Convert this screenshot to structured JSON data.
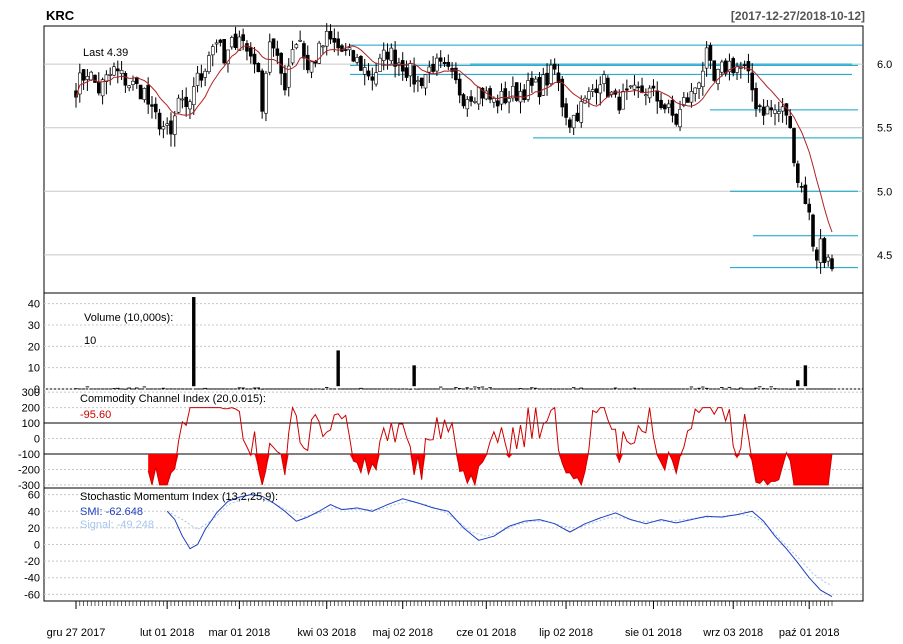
{
  "header": {
    "symbol": "KRC",
    "date_range": "[2017-12-27/2018-10-12]"
  },
  "colors": {
    "up": "#ffffff",
    "down": "#000000",
    "candle_border": "#000000",
    "sma": "#b22222",
    "bbands": "#0aa0c8",
    "cci_fill": "#ff0000",
    "cci_line": "#cc0000",
    "smi": "#1f3fbf",
    "signal": "#a8c6ec",
    "grid": "#c8c8c8"
  },
  "chart_data": [
    {
      "type": "candlestick",
      "name": "price",
      "last_label": "Last 4.39",
      "ylim": [
        4.2,
        6.3
      ],
      "y_ticks": [
        "4.5",
        "5.0",
        "5.5",
        "6.0"
      ],
      "y_tick_values": [
        4.5,
        5.0,
        5.5,
        6.0
      ],
      "x_tick_labels": [
        "gru 27 2017",
        "lut 01 2018",
        "mar 01 2018",
        "kwi 03 2018",
        "maj 02 2018",
        "cze 01 2018",
        "lip 02 2018",
        "sie 01 2018",
        "wrz 03 2018",
        "paź 01 2018"
      ],
      "x_tick_index": [
        0,
        24,
        43,
        66,
        86,
        108,
        129,
        152,
        173,
        193
      ],
      "anchors": [
        [
          0,
          5.82
        ],
        [
          3,
          5.95
        ],
        [
          6,
          5.8
        ],
        [
          10,
          5.95
        ],
        [
          14,
          5.85
        ],
        [
          18,
          5.78
        ],
        [
          20,
          5.6
        ],
        [
          22,
          5.55
        ],
        [
          25,
          5.42
        ],
        [
          27,
          5.72
        ],
        [
          29,
          5.6
        ],
        [
          31,
          5.85
        ],
        [
          33,
          5.9
        ],
        [
          35,
          6.1
        ],
        [
          37,
          6.2
        ],
        [
          39,
          6.0
        ],
        [
          41,
          6.15
        ],
        [
          43,
          6.25
        ],
        [
          45,
          6.1
        ],
        [
          47,
          6.05
        ],
        [
          49,
          5.7
        ],
        [
          51,
          6.2
        ],
        [
          53,
          6.0
        ],
        [
          55,
          5.85
        ],
        [
          57,
          6.15
        ],
        [
          59,
          6.2
        ],
        [
          61,
          5.95
        ],
        [
          63,
          6.05
        ],
        [
          65,
          6.15
        ],
        [
          66,
          6.2
        ],
        [
          70,
          6.1
        ],
        [
          74,
          6.02
        ],
        [
          78,
          5.9
        ],
        [
          82,
          6.1
        ],
        [
          86,
          6.0
        ],
        [
          90,
          5.85
        ],
        [
          94,
          6.0
        ],
        [
          98,
          5.92
        ],
        [
          102,
          5.75
        ],
        [
          106,
          5.8
        ],
        [
          110,
          5.7
        ],
        [
          114,
          5.75
        ],
        [
          118,
          5.8
        ],
        [
          122,
          5.82
        ],
        [
          126,
          5.95
        ],
        [
          128,
          5.7
        ],
        [
          130,
          5.55
        ],
        [
          134,
          5.7
        ],
        [
          138,
          5.9
        ],
        [
          142,
          5.7
        ],
        [
          146,
          5.75
        ],
        [
          150,
          5.8
        ],
        [
          154,
          5.7
        ],
        [
          158,
          5.55
        ],
        [
          160,
          5.7
        ],
        [
          162,
          5.75
        ],
        [
          164,
          5.9
        ],
        [
          166,
          6.05
        ],
        [
          168,
          5.85
        ],
        [
          170,
          5.95
        ],
        [
          172,
          6.0
        ],
        [
          174,
          5.98
        ],
        [
          176,
          5.95
        ],
        [
          178,
          5.8
        ],
        [
          179,
          5.7
        ],
        [
          181,
          5.65
        ],
        [
          184,
          5.63
        ],
        [
          187,
          5.62
        ],
        [
          189,
          5.3
        ],
        [
          190,
          5.1
        ],
        [
          192,
          4.95
        ],
        [
          193,
          4.8
        ],
        [
          194,
          4.6
        ],
        [
          195,
          4.5
        ],
        [
          196,
          4.6
        ],
        [
          197,
          4.45
        ],
        [
          198,
          4.55
        ],
        [
          199,
          4.39
        ]
      ],
      "volume_spikes": [
        [
          31,
          43
        ],
        [
          69,
          18
        ],
        [
          89,
          11
        ],
        [
          190,
          4
        ],
        [
          192,
          11
        ]
      ]
    },
    {
      "type": "bar",
      "name": "volume",
      "label": "Volume (10,000s):",
      "value_label": "10",
      "ylim": [
        0,
        45
      ],
      "y_ticks": [
        "0",
        "10",
        "20",
        "30",
        "40"
      ],
      "y_tick_values": [
        0,
        10,
        20,
        30,
        40
      ]
    },
    {
      "type": "area",
      "name": "cci",
      "label": "Commodity Channel Index (20,0.015):",
      "value_label": "-95.60",
      "ylim": [
        -320,
        320
      ],
      "y_ticks": [
        "-300",
        "-200",
        "-100",
        "0",
        "100",
        "200",
        "300"
      ],
      "y_tick_values": [
        -300,
        -200,
        -100,
        0,
        100,
        200,
        300
      ],
      "ref_lines": [
        100,
        -100
      ]
    },
    {
      "type": "line",
      "name": "smi",
      "label": "Stochastic Momentum Index (13,2,25,9):",
      "smi_label": "SMI: -62.648",
      "signal_label": "Signal: -49.248",
      "ylim": [
        -68,
        68
      ],
      "y_ticks": [
        "-60",
        "-40",
        "-20",
        "0",
        "20",
        "40",
        "60"
      ],
      "y_tick_values": [
        -60,
        -40,
        -20,
        0,
        20,
        40,
        60
      ],
      "smi_anchors": [
        [
          24,
          40
        ],
        [
          26,
          30
        ],
        [
          28,
          10
        ],
        [
          30,
          -5
        ],
        [
          32,
          0
        ],
        [
          34,
          18
        ],
        [
          37,
          38
        ],
        [
          40,
          52
        ],
        [
          43,
          57
        ],
        [
          46,
          60
        ],
        [
          49,
          58
        ],
        [
          52,
          50
        ],
        [
          55,
          40
        ],
        [
          58,
          28
        ],
        [
          61,
          33
        ],
        [
          64,
          40
        ],
        [
          67,
          48
        ],
        [
          70,
          42
        ],
        [
          74,
          44
        ],
        [
          78,
          40
        ],
        [
          82,
          48
        ],
        [
          86,
          55
        ],
        [
          90,
          50
        ],
        [
          94,
          44
        ],
        [
          98,
          40
        ],
        [
          102,
          20
        ],
        [
          106,
          5
        ],
        [
          110,
          10
        ],
        [
          114,
          22
        ],
        [
          118,
          28
        ],
        [
          122,
          30
        ],
        [
          126,
          25
        ],
        [
          130,
          15
        ],
        [
          134,
          25
        ],
        [
          138,
          32
        ],
        [
          142,
          38
        ],
        [
          146,
          30
        ],
        [
          150,
          25
        ],
        [
          154,
          30
        ],
        [
          158,
          26
        ],
        [
          162,
          30
        ],
        [
          166,
          34
        ],
        [
          170,
          33
        ],
        [
          174,
          36
        ],
        [
          178,
          40
        ],
        [
          181,
          28
        ],
        [
          184,
          10
        ],
        [
          187,
          -5
        ],
        [
          190,
          -22
        ],
        [
          193,
          -40
        ],
        [
          196,
          -55
        ],
        [
          199,
          -62.648
        ]
      ],
      "signal_anchors": [
        [
          24,
          40
        ],
        [
          28,
          30
        ],
        [
          32,
          18
        ],
        [
          36,
          30
        ],
        [
          40,
          48
        ],
        [
          44,
          55
        ],
        [
          48,
          56
        ],
        [
          52,
          50
        ],
        [
          56,
          40
        ],
        [
          60,
          33
        ],
        [
          64,
          38
        ],
        [
          68,
          44
        ],
        [
          72,
          42
        ],
        [
          76,
          42
        ],
        [
          80,
          42
        ],
        [
          84,
          48
        ],
        [
          88,
          52
        ],
        [
          92,
          48
        ],
        [
          96,
          42
        ],
        [
          100,
          30
        ],
        [
          104,
          15
        ],
        [
          108,
          10
        ],
        [
          112,
          16
        ],
        [
          116,
          24
        ],
        [
          120,
          28
        ],
        [
          124,
          28
        ],
        [
          128,
          22
        ],
        [
          132,
          20
        ],
        [
          136,
          26
        ],
        [
          140,
          32
        ],
        [
          144,
          32
        ],
        [
          148,
          28
        ],
        [
          152,
          28
        ],
        [
          156,
          28
        ],
        [
          160,
          30
        ],
        [
          164,
          32
        ],
        [
          168,
          33
        ],
        [
          172,
          35
        ],
        [
          176,
          36
        ],
        [
          179,
          32
        ],
        [
          182,
          22
        ],
        [
          185,
          8
        ],
        [
          188,
          -6
        ],
        [
          191,
          -20
        ],
        [
          194,
          -35
        ],
        [
          197,
          -45
        ],
        [
          199,
          -49.248
        ]
      ]
    }
  ]
}
